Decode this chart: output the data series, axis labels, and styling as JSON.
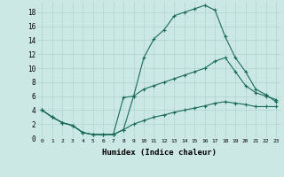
{
  "xlabel": "Humidex (Indice chaleur)",
  "ylabel": "",
  "bg_color": "#cce8e4",
  "grid_color": "#aed4cf",
  "line_color": "#1a6b5a",
  "xlim": [
    -0.5,
    23.5
  ],
  "ylim": [
    0,
    19.5
  ],
  "xticks": [
    0,
    1,
    2,
    3,
    4,
    5,
    6,
    7,
    8,
    9,
    10,
    11,
    12,
    13,
    14,
    15,
    16,
    17,
    18,
    19,
    20,
    21,
    22,
    23
  ],
  "yticks": [
    0,
    2,
    4,
    6,
    8,
    10,
    12,
    14,
    16,
    18
  ],
  "line1_x": [
    0,
    1,
    2,
    3,
    4,
    5,
    6,
    7,
    8,
    9,
    10,
    11,
    12,
    13,
    14,
    15,
    16,
    17,
    18,
    19,
    20,
    21,
    22,
    23
  ],
  "line1_y": [
    4,
    3,
    2.2,
    1.8,
    0.8,
    0.5,
    0.5,
    0.5,
    1.2,
    6,
    11.5,
    14.2,
    15.5,
    17.5,
    18,
    18.5,
    19,
    18.3,
    14.5,
    11.5,
    9.5,
    7,
    6.2,
    5.2
  ],
  "line2_x": [
    0,
    1,
    2,
    3,
    4,
    5,
    6,
    7,
    8,
    9,
    10,
    11,
    12,
    13,
    14,
    15,
    16,
    17,
    18,
    19,
    20,
    21,
    22,
    23
  ],
  "line2_y": [
    4,
    3,
    2.2,
    1.8,
    0.8,
    0.5,
    0.5,
    0.5,
    5.8,
    6,
    7,
    7.5,
    8,
    8.5,
    9,
    9.5,
    10,
    11,
    11.5,
    9.5,
    7.5,
    6.5,
    6,
    5.5
  ],
  "line3_x": [
    0,
    1,
    2,
    3,
    4,
    5,
    6,
    7,
    8,
    9,
    10,
    11,
    12,
    13,
    14,
    15,
    16,
    17,
    18,
    19,
    20,
    21,
    22,
    23
  ],
  "line3_y": [
    4,
    3,
    2.2,
    1.8,
    0.8,
    0.5,
    0.5,
    0.5,
    1.2,
    2,
    2.5,
    3,
    3.3,
    3.7,
    4,
    4.3,
    4.6,
    5,
    5.2,
    5,
    4.8,
    4.5,
    4.5,
    4.5
  ]
}
